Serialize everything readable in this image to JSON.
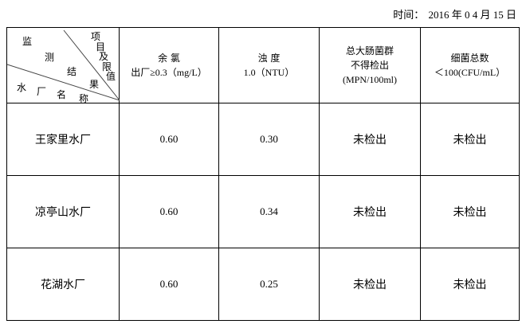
{
  "date": {
    "label": "时间：",
    "value": "2016 年 0 4 月 15 日"
  },
  "corner": {
    "top_chars": [
      "监",
      "测",
      "结",
      "果"
    ],
    "right_chars": [
      "项",
      "目",
      "及",
      "限",
      "值"
    ],
    "bottom_chars": [
      "水",
      "厂",
      "名",
      "称"
    ]
  },
  "columns": [
    {
      "name": "余 氯",
      "limit": "出厂≥0.3（mg/L）"
    },
    {
      "name": "浊 度",
      "limit": "1.0（NTU）"
    },
    {
      "name": "总大肠菌群",
      "name2": "不得检出",
      "limit": "(MPN/100ml)"
    },
    {
      "name": "细菌总数",
      "limit": "＜100(CFU/mL）"
    }
  ],
  "rows": [
    {
      "plant": "王家里水厂",
      "values": [
        "0.60",
        "0.30",
        "未检出",
        "未检出"
      ]
    },
    {
      "plant": "凉亭山水厂",
      "values": [
        "0.60",
        "0.34",
        "未检出",
        "未检出"
      ]
    },
    {
      "plant": "花湖水厂",
      "values": [
        "0.60",
        "0.25",
        "未检出",
        "未检出"
      ]
    }
  ]
}
